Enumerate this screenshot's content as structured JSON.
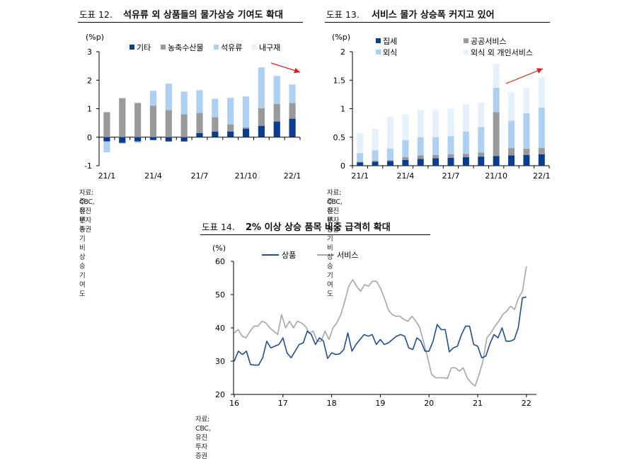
{
  "figures": [
    {
      "number": "도표 12.",
      "title": "석유류 외 상품들의 물가상승 기여도 확대",
      "source": "자료: CBC, 유진투자증권",
      "note": "주: 전년동기비 상승 기여도"
    },
    {
      "number": "도표 13.",
      "title": "서비스 물가 상승폭 커지고 있어",
      "source": "자료: CBC, 유진투자증권",
      "note": "주: 전년동기비 상승 기여도"
    },
    {
      "number": "도표 14.",
      "title": "2% 이상 상승 품목 비중 급격히 확대",
      "source": "자료: CBC, 유진투자증권"
    }
  ],
  "chart_data": [
    {
      "type": "bar",
      "stacked": true,
      "unit": "(%p)",
      "ylim": [
        -1,
        3
      ],
      "yticks": [
        -1,
        0,
        1,
        2,
        3
      ],
      "categories": [
        "21/1",
        "21/2",
        "21/3",
        "21/4",
        "21/5",
        "21/6",
        "21/7",
        "21/8",
        "21/9",
        "21/10",
        "21/11",
        "21/12",
        "22/1"
      ],
      "xtick_labels": [
        "21/1",
        "21/4",
        "21/7",
        "21/10",
        "22/1"
      ],
      "xtick_index": [
        0,
        3,
        6,
        9,
        12
      ],
      "legend": [
        "기타",
        "농축수산물",
        "석유류",
        "내구재"
      ],
      "series": [
        {
          "name": "기타",
          "color": "#0a3d8f",
          "values": [
            -0.15,
            -0.2,
            -0.15,
            -0.1,
            -0.15,
            -0.15,
            0.15,
            0.2,
            0.2,
            0.3,
            0.4,
            0.55,
            0.65
          ]
        },
        {
          "name": "농축수산물",
          "color": "#9a9a9a",
          "values": [
            0.88,
            1.37,
            1.2,
            1.1,
            0.95,
            0.8,
            0.7,
            0.5,
            0.25,
            0.05,
            0.62,
            0.62,
            0.55
          ]
        },
        {
          "name": "석유류",
          "color": "#aed0f2",
          "values": [
            -0.38,
            -0.03,
            -0.05,
            0.53,
            0.93,
            0.8,
            0.8,
            0.65,
            0.93,
            1.08,
            1.43,
            0.98,
            0.65
          ]
        },
        {
          "name": "내구재",
          "color": "#e6f1fb",
          "values": [
            0,
            0,
            0.03,
            0,
            0,
            0,
            0,
            0,
            0,
            0,
            0,
            0,
            0
          ]
        }
      ],
      "annotation": "red trend arrow"
    },
    {
      "type": "bar",
      "stacked": true,
      "unit": "(%p)",
      "ylim": [
        0,
        2
      ],
      "yticks": [
        0,
        0.5,
        1,
        1.5,
        2
      ],
      "ytick_labels": [
        "0",
        "0.5",
        "1",
        "1.5",
        "2"
      ],
      "categories": [
        "21/1",
        "21/2",
        "21/3",
        "21/4",
        "21/5",
        "21/6",
        "21/7",
        "21/8",
        "21/9",
        "21/10",
        "21/11",
        "21/12",
        "22/1"
      ],
      "xtick_labels": [
        "21/1",
        "21/4",
        "21/7",
        "21/10",
        "22/1"
      ],
      "xtick_index": [
        0,
        3,
        6,
        9,
        12
      ],
      "legend": [
        "집세",
        "공공서비스",
        "외식",
        "외식 외 개인서비스"
      ],
      "series": [
        {
          "name": "집세",
          "color": "#0a3d8f",
          "values": [
            0.06,
            0.07,
            0.08,
            0.1,
            0.12,
            0.13,
            0.14,
            0.15,
            0.16,
            0.17,
            0.18,
            0.19,
            0.2
          ]
        },
        {
          "name": "공공서비스",
          "color": "#9a9a9a",
          "values": [
            0.01,
            0.02,
            0.02,
            0.05,
            0.06,
            0.06,
            0.06,
            0.06,
            0.07,
            0.77,
            0.13,
            0.11,
            0.11
          ]
        },
        {
          "name": "외식",
          "color": "#aed0f2",
          "values": [
            0.15,
            0.18,
            0.2,
            0.3,
            0.32,
            0.31,
            0.32,
            0.39,
            0.45,
            0.43,
            0.48,
            0.62,
            0.71
          ]
        },
        {
          "name": "외식 외 개인서비스",
          "color": "#e6f1fb",
          "values": [
            0.35,
            0.38,
            0.56,
            0.45,
            0.48,
            0.48,
            0.48,
            0.48,
            0.42,
            0.42,
            0.5,
            0.45,
            0.53
          ]
        }
      ],
      "annotation": "red trend arrow"
    },
    {
      "type": "line",
      "unit": "(%)",
      "ylim": [
        20,
        60
      ],
      "yticks": [
        20,
        30,
        40,
        50,
        60
      ],
      "x_start": 2016,
      "x_end": 2022,
      "xtick_labels": [
        "16",
        "17",
        "18",
        "19",
        "20",
        "21",
        "22"
      ],
      "series": [
        {
          "name": "상품",
          "color": "#1f4e99",
          "values": [
            30,
            33,
            32,
            33,
            29,
            28.8,
            28.8,
            31,
            36,
            34,
            34.5,
            35,
            37,
            32.5,
            31,
            33,
            35,
            35.5,
            39,
            38,
            35,
            37,
            36,
            30.8,
            32.5,
            32,
            32.2,
            33.5,
            38.5,
            33,
            35,
            36.5,
            38,
            37.5,
            38,
            35,
            36.5,
            35,
            35.5,
            36.5,
            37.5,
            38,
            37.5,
            34,
            33.5,
            37,
            36,
            33,
            33,
            36,
            41,
            39.5,
            39.5,
            32.8,
            34,
            34.5,
            38,
            40.5,
            40.5,
            35,
            34.5,
            31,
            31.5,
            35.2,
            38,
            37,
            40,
            36,
            36,
            36.5,
            40,
            49,
            49.3
          ]
        },
        {
          "name": "서비스",
          "color": "#a6a6a6",
          "values": [
            38.5,
            39.5,
            37.5,
            37,
            39,
            40.5,
            40.5,
            42,
            41.5,
            40,
            39,
            38,
            44,
            40,
            42,
            40,
            42,
            41.5,
            40.5,
            38.5,
            39,
            36,
            36,
            39,
            36.5,
            40,
            41.5,
            44,
            48,
            52.5,
            54.5,
            52.5,
            51,
            53,
            52.5,
            54,
            54,
            52,
            49,
            45.5,
            44,
            43.5,
            43.5,
            42.5,
            42,
            43.5,
            42,
            40,
            35.5,
            31,
            26,
            25,
            25,
            25,
            24.8,
            28,
            28,
            27,
            28,
            25,
            23.5,
            22.5,
            26,
            30,
            37,
            38.5,
            40.5,
            42,
            44,
            45,
            46.5,
            45.5,
            49,
            51,
            58.5
          ]
        }
      ]
    }
  ]
}
